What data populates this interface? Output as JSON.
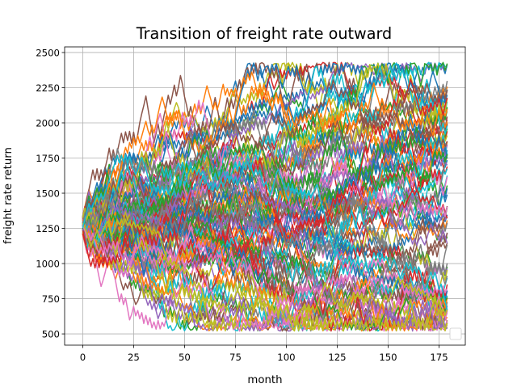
{
  "chart_data": {
    "type": "line",
    "title": "Transition of freight rate outward",
    "xlabel": "month",
    "ylabel": "freight rate return",
    "xlim": [
      -8.9,
      187.9
    ],
    "ylim": [
      420,
      2540
    ],
    "xticks": [
      0,
      25,
      50,
      75,
      100,
      125,
      150,
      175
    ],
    "yticks": [
      500,
      750,
      1000,
      1250,
      1500,
      1750,
      2000,
      2250,
      2500
    ],
    "grid": true,
    "legend": "lower-right (empty)",
    "x_range": [
      0,
      179
    ],
    "rate_floor": 520,
    "rate_cap": 2430,
    "start_range": [
      1200,
      1340
    ],
    "num_series": 100,
    "colors": [
      "#1f77b4",
      "#ff7f0e",
      "#2ca02c",
      "#d62728",
      "#9467bd",
      "#8c564b",
      "#e377c2",
      "#7f7f7f",
      "#bcbd22",
      "#17becf"
    ]
  }
}
